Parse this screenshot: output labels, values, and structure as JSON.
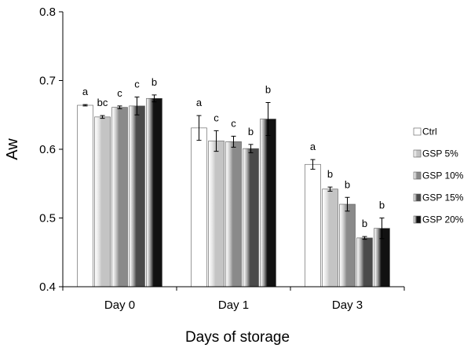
{
  "chart_data": {
    "type": "bar",
    "categories": [
      "Day 0",
      "Day 1",
      "Day 3"
    ],
    "xlabel": "Days of storage",
    "ylabel": "Aw",
    "ylim": [
      0.4,
      0.8
    ],
    "yticks": [
      0.4,
      0.5,
      0.6,
      0.7,
      0.8
    ],
    "grid": false,
    "legend_position": "right",
    "series": [
      {
        "name": "Ctrl",
        "values": [
          0.664,
          0.631,
          0.578
        ],
        "errors": [
          0.001,
          0.018,
          0.007
        ],
        "labels": [
          "a",
          "a",
          "a"
        ],
        "color": "#ffffff"
      },
      {
        "name": "GSP 5%",
        "values": [
          0.647,
          0.612,
          0.542
        ],
        "errors": [
          0.002,
          0.015,
          0.003
        ],
        "labels": [
          "bc",
          "c",
          "b"
        ],
        "color": "#c4c4c4"
      },
      {
        "name": "GSP 10%",
        "values": [
          0.661,
          0.611,
          0.52
        ],
        "errors": [
          0.002,
          0.008,
          0.01
        ],
        "labels": [
          "c",
          "c",
          "b"
        ],
        "color": "#8a8a8a"
      },
      {
        "name": "GSP 15%",
        "values": [
          0.663,
          0.601,
          0.471
        ],
        "errors": [
          0.013,
          0.006,
          0.002
        ],
        "labels": [
          "c",
          "b",
          "b"
        ],
        "color": "#4a4a4a"
      },
      {
        "name": "GSP 20%",
        "values": [
          0.674,
          0.644,
          0.485
        ],
        "errors": [
          0.005,
          0.024,
          0.015
        ],
        "labels": [
          "b",
          "b",
          "b"
        ],
        "color": "#111111"
      }
    ]
  }
}
